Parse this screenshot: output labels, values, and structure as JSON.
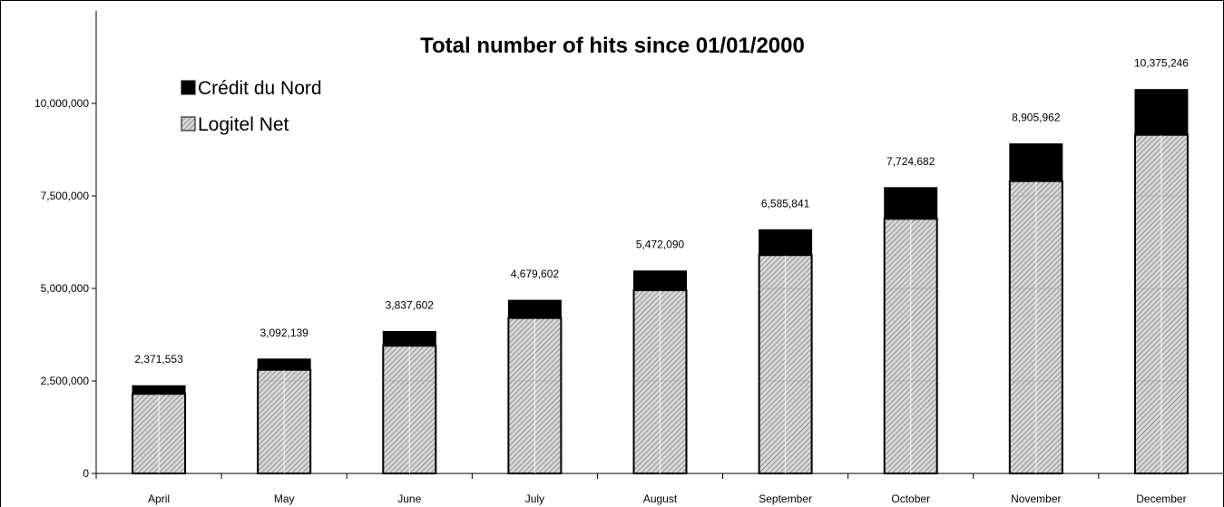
{
  "chart_data": {
    "type": "bar",
    "stacked": true,
    "title": "Total number of hits since 01/01/2000",
    "xlabel": "",
    "ylabel": "",
    "ylim": [
      0,
      12500000
    ],
    "yticks": [
      0,
      2500000,
      5000000,
      7500000,
      10000000
    ],
    "ytick_labels": [
      "0",
      "2,500,000",
      "5,000,000",
      "7,500,000",
      "10,000,000"
    ],
    "grid": false,
    "legend_position": "top-left",
    "categories": [
      "April",
      "May",
      "June",
      "July",
      "August",
      "September",
      "October",
      "November",
      "December"
    ],
    "series": [
      {
        "name": "Logitel Net",
        "color": "#d9d9d9",
        "pattern": "hatched",
        "values": [
          2150000,
          2800000,
          3450000,
          4200000,
          4950000,
          5900000,
          6880000,
          7900000,
          9150000
        ]
      },
      {
        "name": "Crédit du Nord",
        "color": "#000000",
        "values": [
          221553,
          292139,
          387602,
          479602,
          522090,
          685841,
          844682,
          1005962,
          1225246
        ]
      }
    ],
    "totals": [
      2371553,
      3092139,
      3837602,
      4679602,
      5472090,
      6585841,
      7724682,
      8905962,
      10375246
    ],
    "total_labels": [
      "2,371,553",
      "3,092,139",
      "3,837,602",
      "4,679,602",
      "5,472,090",
      "6,585,841",
      "7,724,682",
      "8,905,962",
      "10,375,246"
    ]
  }
}
